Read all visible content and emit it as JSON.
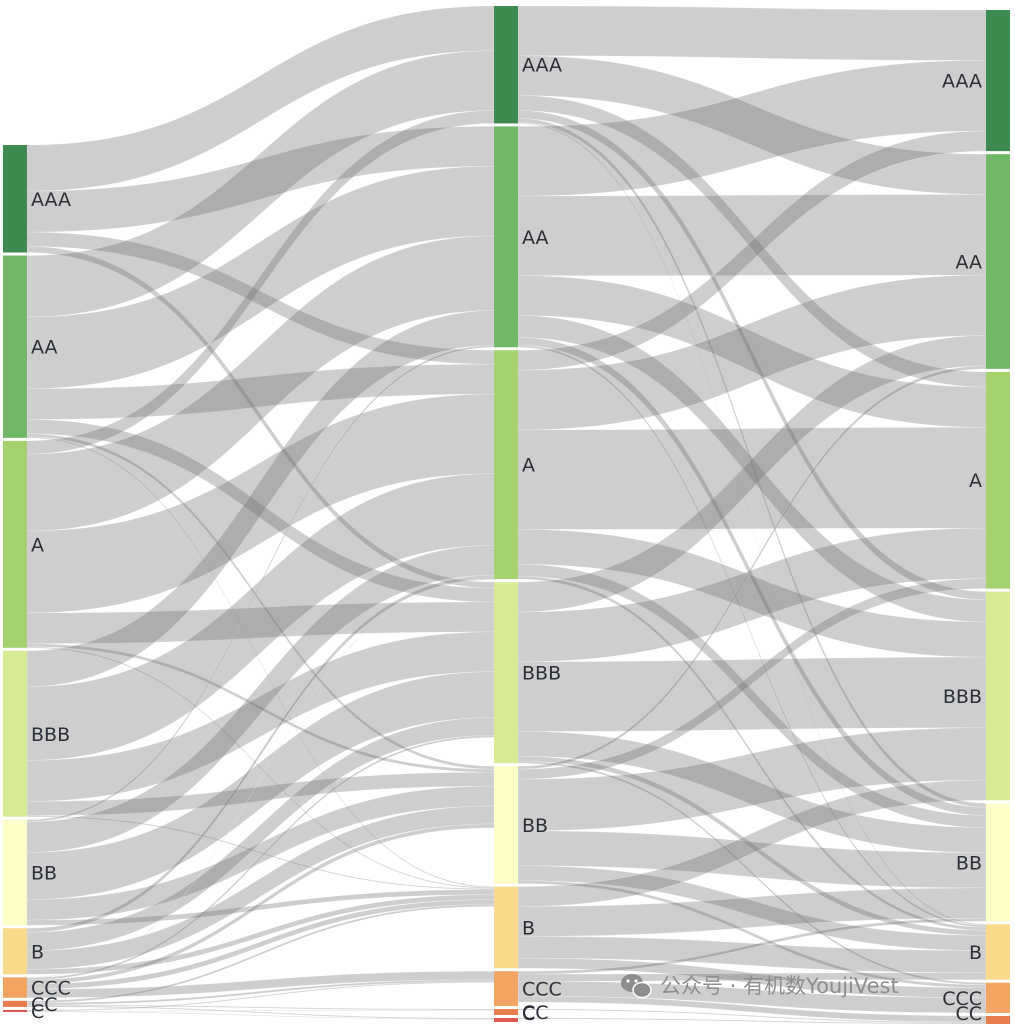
{
  "chart_data": {
    "type": "sankey",
    "columns": [
      {
        "nodes": [
          {
            "label": "AAA",
            "value": 105,
            "color": "#3e8a50"
          },
          {
            "label": "AA",
            "value": 178,
            "color": "#73b769"
          },
          {
            "label": "A",
            "value": 202,
            "color": "#a6d16f"
          },
          {
            "label": "BBB",
            "value": 162,
            "color": "#d7eb95"
          },
          {
            "label": "BB",
            "value": 103,
            "color": "#fdfdc7"
          },
          {
            "label": "B",
            "value": 45,
            "color": "#f9da8b"
          },
          {
            "label": "CCC",
            "value": 20,
            "color": "#f2a462"
          },
          {
            "label": "CC",
            "value": 6,
            "color": "#e87c4d"
          },
          {
            "label": "C",
            "value": 2,
            "color": "#dd5a50"
          }
        ]
      },
      {
        "nodes": [
          {
            "label": "AAA",
            "value": 118,
            "color": "#3e8a50"
          },
          {
            "label": "AA",
            "value": 222,
            "color": "#73b769"
          },
          {
            "label": "A",
            "value": 230,
            "color": "#a6d16f"
          },
          {
            "label": "BBB",
            "value": 182,
            "color": "#d7eb95"
          },
          {
            "label": "BB",
            "value": 118,
            "color": "#fdfdc7"
          },
          {
            "label": "B",
            "value": 82,
            "color": "#f9da8b"
          },
          {
            "label": "CCC",
            "value": 35,
            "color": "#f2a462"
          },
          {
            "label": "CC",
            "value": 6,
            "color": "#e87c4d"
          },
          {
            "label": "C",
            "value": 4,
            "color": "#dd5a50"
          }
        ]
      },
      {
        "nodes": [
          {
            "label": "AAA",
            "value": 140,
            "color": "#3e8a50"
          },
          {
            "label": "AA",
            "value": 213,
            "color": "#73b769"
          },
          {
            "label": "A",
            "value": 215,
            "color": "#a6d16f"
          },
          {
            "label": "BBB",
            "value": 207,
            "color": "#d7eb95"
          },
          {
            "label": "BB",
            "value": 117,
            "color": "#fdfdc7"
          },
          {
            "label": "B",
            "value": 55,
            "color": "#f9da8b"
          },
          {
            "label": "CCC",
            "value": 30,
            "color": "#f2a462"
          },
          {
            "label": "CC",
            "value": 8,
            "color": "#e87c4d"
          }
        ]
      }
    ],
    "links": [
      [
        {
          "from": "AAA",
          "to": "AAA",
          "value": 45
        },
        {
          "from": "AAA",
          "to": "AA",
          "value": 40
        },
        {
          "from": "AAA",
          "to": "A",
          "value": 14
        },
        {
          "from": "AAA",
          "to": "BBB",
          "value": 6
        },
        {
          "from": "AA",
          "to": "AAA",
          "value": 60
        },
        {
          "from": "AA",
          "to": "AA",
          "value": 70
        },
        {
          "from": "AA",
          "to": "A",
          "value": 30
        },
        {
          "from": "AA",
          "to": "BBB",
          "value": 14
        },
        {
          "from": "AA",
          "to": "BB",
          "value": 3
        },
        {
          "from": "AA",
          "to": "B",
          "value": 1
        },
        {
          "from": "A",
          "to": "AAA",
          "value": 13
        },
        {
          "from": "A",
          "to": "AA",
          "value": 75
        },
        {
          "from": "A",
          "to": "A",
          "value": 80
        },
        {
          "from": "A",
          "to": "BBB",
          "value": 30
        },
        {
          "from": "A",
          "to": "BB",
          "value": 3
        },
        {
          "from": "A",
          "to": "B",
          "value": 1
        },
        {
          "from": "BBB",
          "to": "AA",
          "value": 35
        },
        {
          "from": "BBB",
          "to": "A",
          "value": 72
        },
        {
          "from": "BBB",
          "to": "BBB",
          "value": 40
        },
        {
          "from": "BBB",
          "to": "BB",
          "value": 14
        },
        {
          "from": "BBB",
          "to": "B",
          "value": 1
        },
        {
          "from": "BB",
          "to": "AA",
          "value": 2
        },
        {
          "from": "BB",
          "to": "A",
          "value": 30
        },
        {
          "from": "BB",
          "to": "BBB",
          "value": 46
        },
        {
          "from": "BB",
          "to": "BB",
          "value": 20
        },
        {
          "from": "BB",
          "to": "B",
          "value": 5
        },
        {
          "from": "B",
          "to": "A",
          "value": 4
        },
        {
          "from": "B",
          "to": "BBB",
          "value": 18
        },
        {
          "from": "B",
          "to": "BB",
          "value": 18
        },
        {
          "from": "B",
          "to": "B",
          "value": 5
        },
        {
          "from": "CCC",
          "to": "A",
          "value": 0.5
        },
        {
          "from": "CCC",
          "to": "BBB",
          "value": 2
        },
        {
          "from": "CCC",
          "to": "BB",
          "value": 4
        },
        {
          "from": "CCC",
          "to": "B",
          "value": 5
        },
        {
          "from": "CCC",
          "to": "CCC",
          "value": 8.5
        },
        {
          "from": "CC",
          "to": "B",
          "value": 2
        },
        {
          "from": "CC",
          "to": "CCC",
          "value": 2
        },
        {
          "from": "CC",
          "to": "CC",
          "value": 1
        },
        {
          "from": "CC",
          "to": "C",
          "value": 1
        },
        {
          "from": "C",
          "to": "CCC",
          "value": 1
        },
        {
          "from": "C",
          "to": "CC",
          "value": 0.5
        },
        {
          "from": "C",
          "to": "C",
          "value": 0.5
        }
      ],
      [
        {
          "from": "AAA",
          "to": "AAA",
          "value": 50
        },
        {
          "from": "AAA",
          "to": "AA",
          "value": 40
        },
        {
          "from": "AAA",
          "to": "A",
          "value": 15
        },
        {
          "from": "AAA",
          "to": "BBB",
          "value": 8
        },
        {
          "from": "AAA",
          "to": "BB",
          "value": 4
        },
        {
          "from": "AAA",
          "to": "B",
          "value": 1
        },
        {
          "from": "AA",
          "to": "AAA",
          "value": 70
        },
        {
          "from": "AA",
          "to": "AA",
          "value": 80
        },
        {
          "from": "AA",
          "to": "A",
          "value": 40
        },
        {
          "from": "AA",
          "to": "BBB",
          "value": 22
        },
        {
          "from": "AA",
          "to": "BB",
          "value": 8
        },
        {
          "from": "AA",
          "to": "B",
          "value": 2
        },
        {
          "from": "A",
          "to": "AAA",
          "value": 20
        },
        {
          "from": "A",
          "to": "AA",
          "value": 60
        },
        {
          "from": "A",
          "to": "A",
          "value": 100
        },
        {
          "from": "A",
          "to": "BBB",
          "value": 35
        },
        {
          "from": "A",
          "to": "BB",
          "value": 12
        },
        {
          "from": "A",
          "to": "B",
          "value": 3
        },
        {
          "from": "BBB",
          "to": "AA",
          "value": 30
        },
        {
          "from": "BBB",
          "to": "A",
          "value": 50
        },
        {
          "from": "BBB",
          "to": "BBB",
          "value": 70
        },
        {
          "from": "BBB",
          "to": "BB",
          "value": 25
        },
        {
          "from": "BBB",
          "to": "B",
          "value": 5
        },
        {
          "from": "BBB",
          "to": "CCC",
          "value": 2
        },
        {
          "from": "BB",
          "to": "AA",
          "value": 3
        },
        {
          "from": "BB",
          "to": "A",
          "value": 10
        },
        {
          "from": "BB",
          "to": "BBB",
          "value": 52
        },
        {
          "from": "BB",
          "to": "BB",
          "value": 35
        },
        {
          "from": "BB",
          "to": "B",
          "value": 15
        },
        {
          "from": "BB",
          "to": "CCC",
          "value": 3
        },
        {
          "from": "B",
          "to": "BBB",
          "value": 20
        },
        {
          "from": "B",
          "to": "BB",
          "value": 30
        },
        {
          "from": "B",
          "to": "B",
          "value": 22
        },
        {
          "from": "B",
          "to": "CCC",
          "value": 10
        },
        {
          "from": "CCC",
          "to": "BB",
          "value": 3
        },
        {
          "from": "CCC",
          "to": "B",
          "value": 7
        },
        {
          "from": "CCC",
          "to": "CCC",
          "value": 15
        },
        {
          "from": "CCC",
          "to": "CC",
          "value": 6
        },
        {
          "from": "CCC",
          "to": "AAA",
          "value": 0
        },
        {
          "from": "CC",
          "to": "CCC",
          "value": 0
        },
        {
          "from": "CC",
          "to": "CC",
          "value": 1
        },
        {
          "from": "C",
          "to": "CC",
          "value": 1
        },
        {
          "from": "C",
          "to": "CCC",
          "value": 0
        }
      ]
    ]
  },
  "watermark": {
    "text": "公众号 · 有机数YoujiVest"
  }
}
